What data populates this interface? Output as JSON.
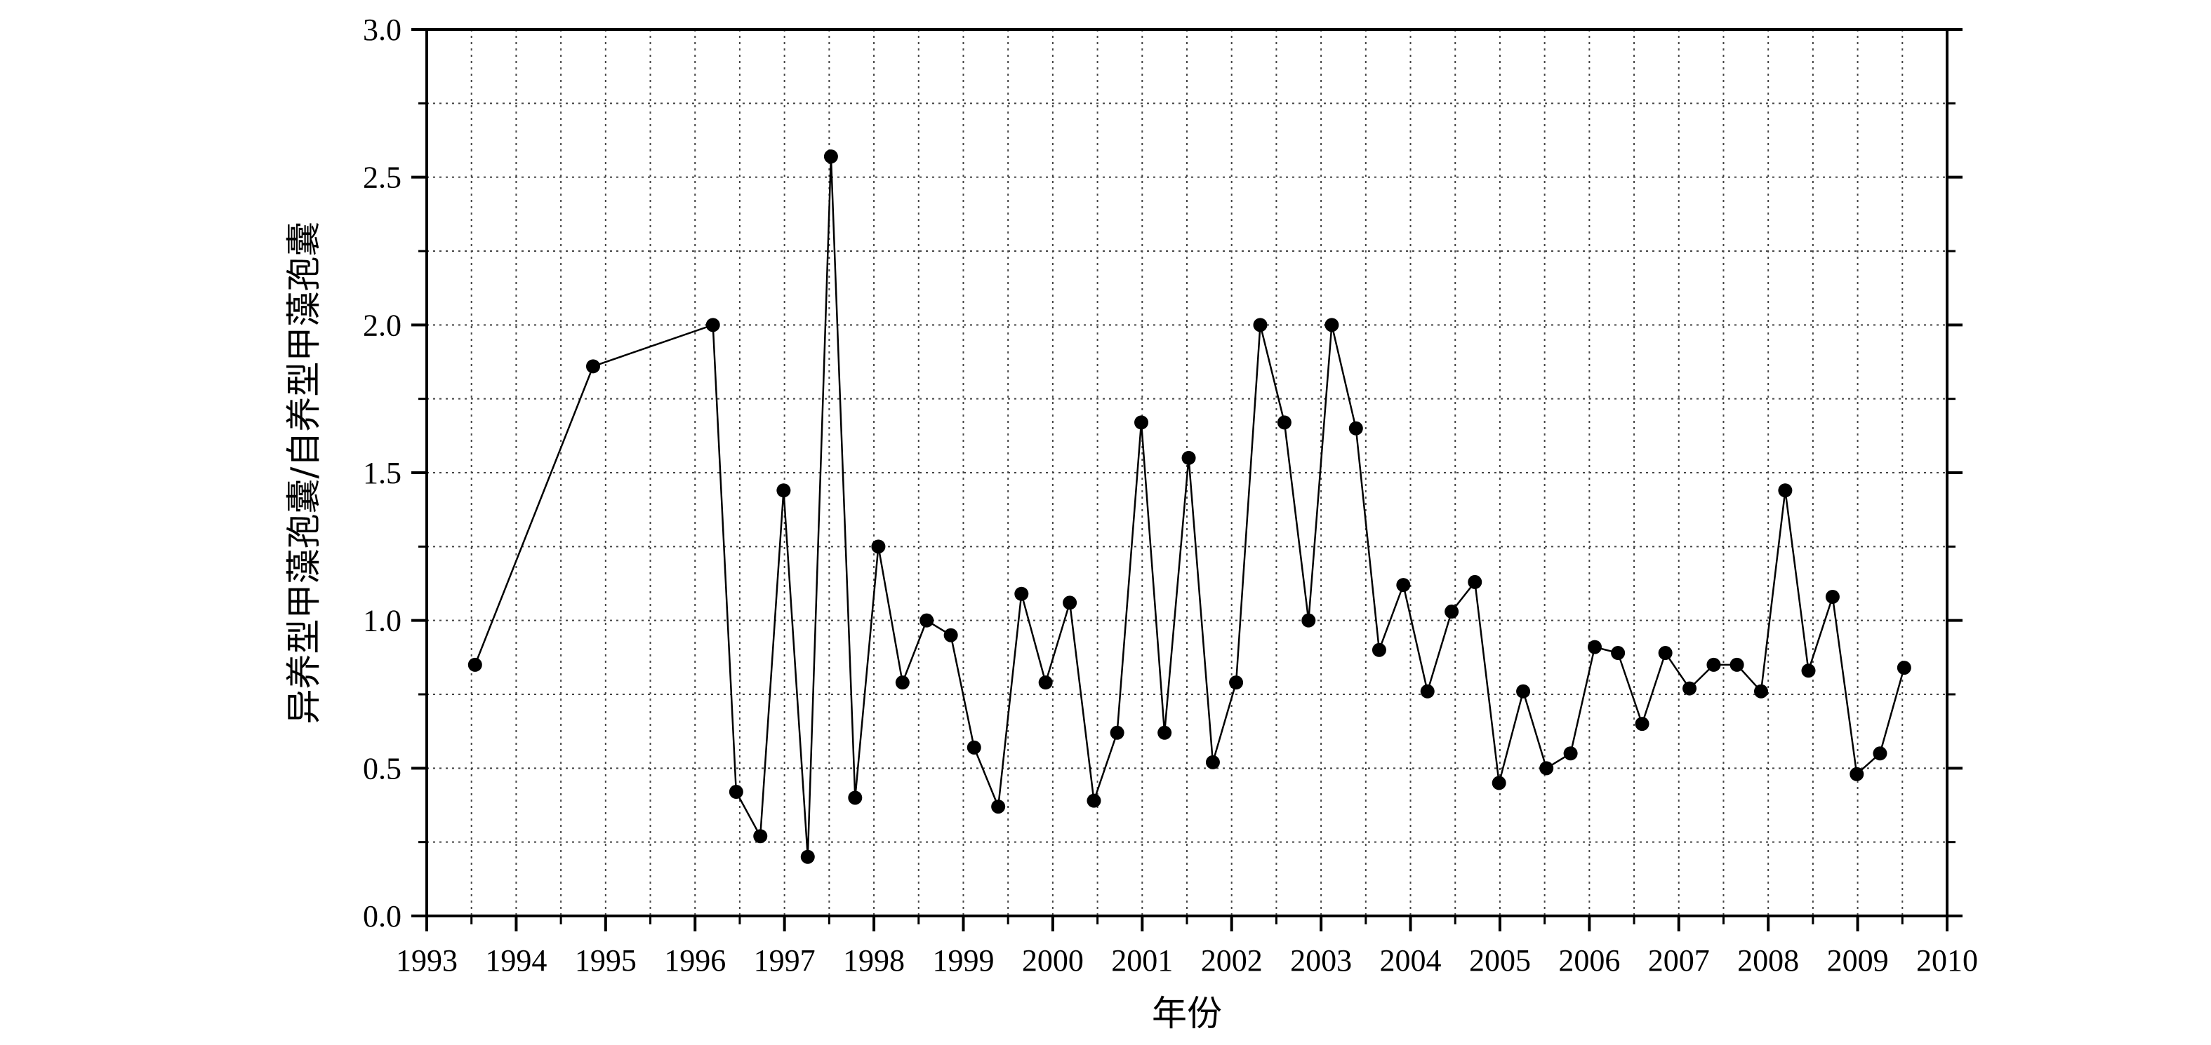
{
  "chart_data": {
    "type": "line",
    "xlabel": "年份",
    "ylabel": "异养型甲藻孢囊/自养型甲藻孢囊",
    "xlim": [
      1993,
      2010
    ],
    "ylim": [
      0.0,
      3.0
    ],
    "grid": true,
    "xticks": [
      "1993",
      "1994",
      "1995",
      "1996",
      "1997",
      "1998",
      "1999",
      "2000",
      "2001",
      "2002",
      "2003",
      "2004",
      "2005",
      "2006",
      "2007",
      "2008",
      "2009",
      "2010"
    ],
    "yticks": [
      "0.0",
      "0.5",
      "1.0",
      "1.5",
      "2.0",
      "2.5",
      "3.0"
    ],
    "series": [
      {
        "marker": "filled-circle",
        "color": "#000000",
        "x": [
          1993.54,
          1994.86,
          1996.2,
          1996.46,
          1996.73,
          1996.99,
          1997.26,
          1997.52,
          1997.79,
          1998.05,
          1998.32,
          1998.59,
          1998.86,
          1999.12,
          1999.39,
          1999.65,
          1999.92,
          2000.19,
          2000.46,
          2000.72,
          2000.99,
          2001.25,
          2001.52,
          2001.79,
          2002.05,
          2002.32,
          2002.59,
          2002.86,
          2003.12,
          2003.39,
          2003.65,
          2003.92,
          2004.19,
          2004.46,
          2004.72,
          2004.99,
          2005.26,
          2005.52,
          2005.79,
          2006.06,
          2006.32,
          2006.59,
          2006.85,
          2007.12,
          2007.39,
          2007.65,
          2007.92,
          2008.19,
          2008.45,
          2008.72,
          2008.99,
          2009.25,
          2009.52
        ],
        "y": [
          0.85,
          1.86,
          2.0,
          0.42,
          0.27,
          1.44,
          0.2,
          2.57,
          0.4,
          1.25,
          0.79,
          1.0,
          0.95,
          0.57,
          0.37,
          1.09,
          0.79,
          1.06,
          0.39,
          0.62,
          1.67,
          0.62,
          1.55,
          0.52,
          0.79,
          2.0,
          1.67,
          1.0,
          2.0,
          1.65,
          0.9,
          1.12,
          0.76,
          1.03,
          1.13,
          0.45,
          0.76,
          0.5,
          0.55,
          0.91,
          0.89,
          0.65,
          0.89,
          0.77,
          0.85,
          0.85,
          0.76,
          1.44,
          0.83,
          1.08,
          0.48,
          0.55,
          0.84
        ]
      }
    ]
  }
}
